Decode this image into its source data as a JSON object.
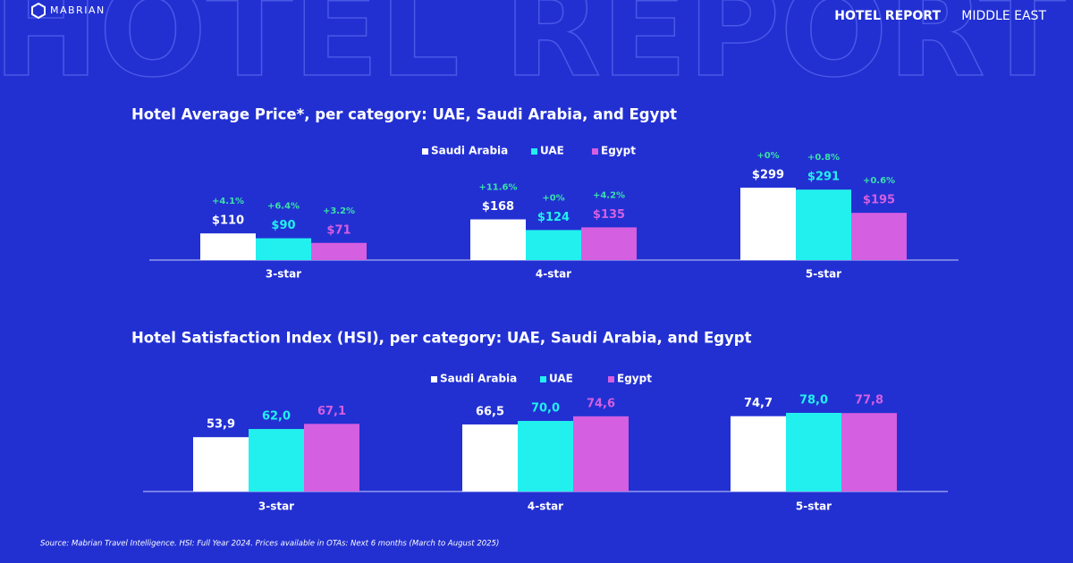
{
  "header": {
    "logo": "MABRIAN",
    "watermark": "HOTEL REPORT",
    "report": "HOTEL REPORT",
    "region": "MIDDLE EAST"
  },
  "chart_data": [
    {
      "type": "bar",
      "title": "Hotel Average Price*, per category: UAE, Saudi Arabia, and Egypt",
      "categories": [
        "3-star",
        "4-star",
        "5-star"
      ],
      "series": [
        {
          "name": "Saudi Arabia",
          "color": "#ffffff",
          "values": [
            110,
            168,
            299
          ],
          "value_labels": [
            "$110",
            "$168",
            "$299"
          ],
          "changes": [
            "+4.1%",
            "+11.6%",
            "+0%"
          ]
        },
        {
          "name": "UAE",
          "color": "#22f0ee",
          "values": [
            90,
            124,
            291
          ],
          "value_labels": [
            "$90",
            "$124",
            "$291"
          ],
          "changes": [
            "+6.4%",
            "+0%",
            "+0.8%"
          ]
        },
        {
          "name": "Egypt",
          "color": "#d45fe0",
          "values": [
            71,
            135,
            195
          ],
          "value_labels": [
            "$71",
            "$135",
            "$195"
          ],
          "changes": [
            "+3.2%",
            "+4.2%",
            "+0.6%"
          ]
        }
      ]
    },
    {
      "type": "bar",
      "title": "Hotel Satisfaction Index (HSI), per category: UAE, Saudi Arabia, and Egypt",
      "categories": [
        "3-star",
        "4-star",
        "5-star"
      ],
      "series": [
        {
          "name": "Saudi Arabia",
          "color": "#ffffff",
          "values": [
            53.9,
            66.5,
            74.7
          ],
          "value_labels": [
            "53,9",
            "66,5",
            "74,7"
          ]
        },
        {
          "name": "UAE",
          "color": "#22f0ee",
          "values": [
            62.0,
            70.0,
            78.0
          ],
          "value_labels": [
            "62,0",
            "70,0",
            "78,0"
          ]
        },
        {
          "name": "Egypt",
          "color": "#d45fe0",
          "values": [
            67.1,
            74.6,
            77.8
          ],
          "value_labels": [
            "67,1",
            "74,6",
            "77,8"
          ]
        }
      ]
    }
  ],
  "source": "Source: Mabrian Travel Intelligence. HSI: Full Year 2024. Prices  available in OTAs: Next 6 months (March to August 2025)"
}
